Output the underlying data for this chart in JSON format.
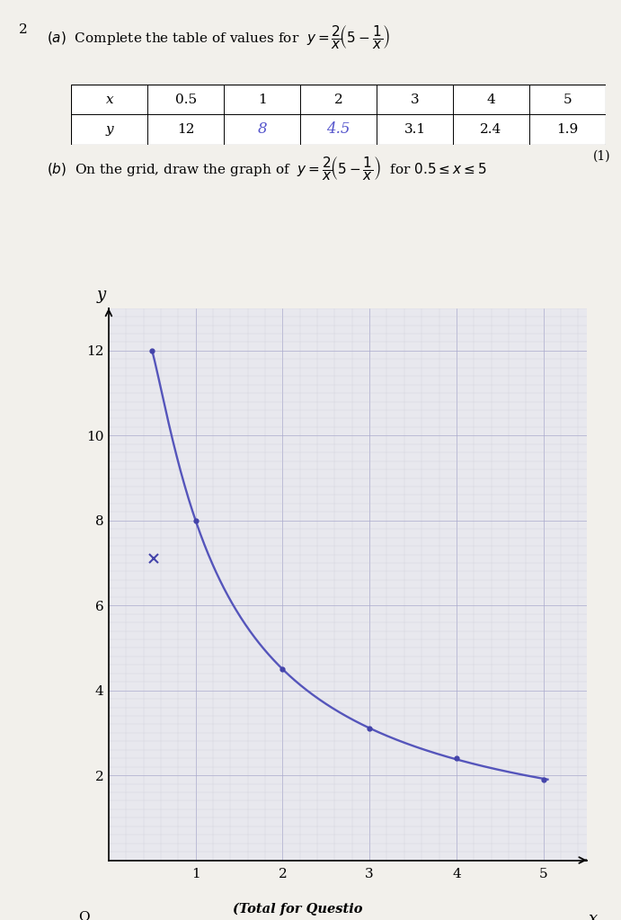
{
  "table_x_labels": [
    "x",
    "0.5",
    "1",
    "2",
    "3",
    "4",
    "5"
  ],
  "table_y_labels": [
    "y",
    "12",
    "8",
    "4.5",
    "3.1",
    "2.4",
    "1.9"
  ],
  "handwritten_indices": [
    2,
    3
  ],
  "x_values": [
    0.5,
    1,
    2,
    3,
    4,
    5
  ],
  "y_values": [
    12,
    8,
    4.5,
    3.1,
    2.4,
    1.9
  ],
  "x_min": 0,
  "x_max": 5.5,
  "y_min": 0,
  "y_max": 13,
  "x_tick_major": [
    1,
    2,
    3,
    4,
    5
  ],
  "y_tick_major": [
    2,
    4,
    6,
    8,
    10,
    12
  ],
  "grid_minor_step": 0.2,
  "curve_color": "#5555bb",
  "point_color": "#4444aa",
  "grid_minor_color": "#ccccd8",
  "grid_major_color": "#aaaacc",
  "graph_bg": "#e8e8ee",
  "paper_bg": "#f2f0eb",
  "handwritten_color": "#5555cc",
  "curve_x_start": 0.5,
  "curve_x_end": 5.05,
  "stray_x": 0.52,
  "stray_y": 7.1
}
